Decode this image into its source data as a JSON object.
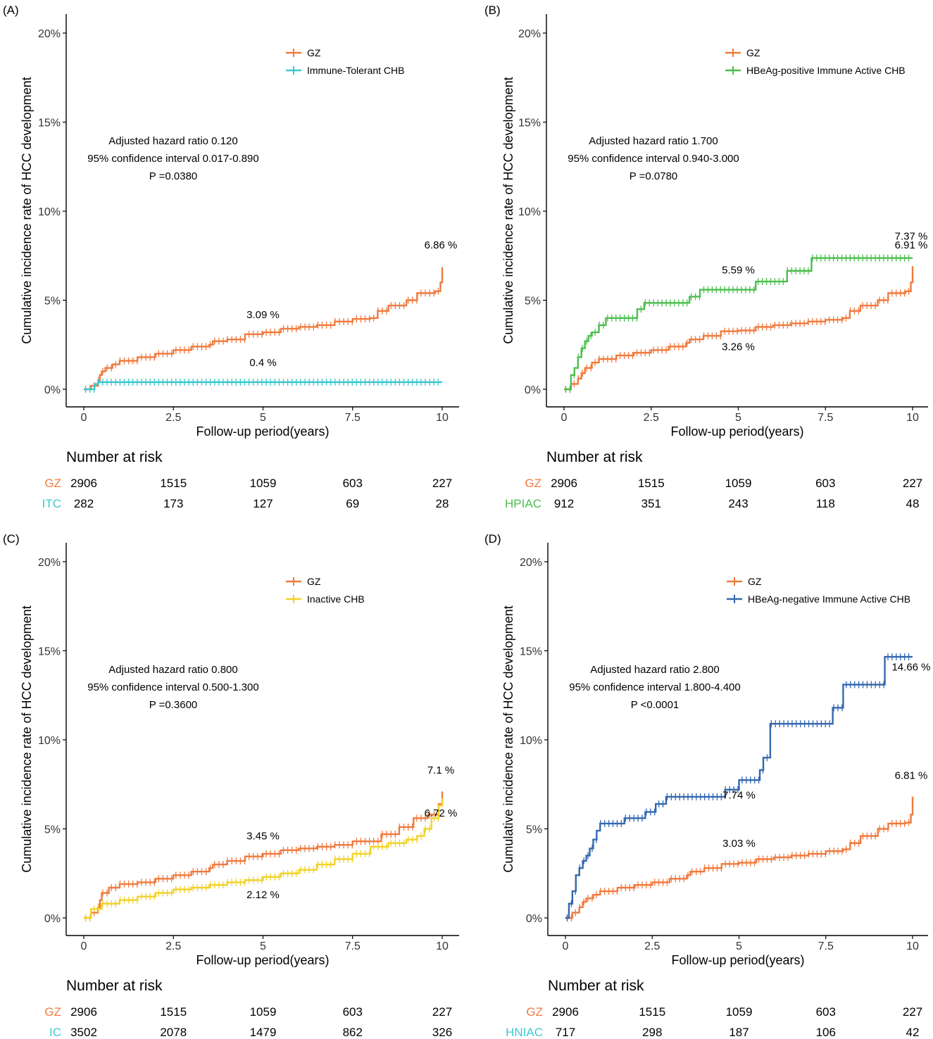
{
  "colors": {
    "GZ": "#f07a3f",
    "ITC": "#3ec8cf",
    "HPIAC": "#4cbf4f",
    "IC": "#f2d22a",
    "HNIAC": "#3468b0"
  },
  "common": {
    "xlabel": "Follow-up period(years)",
    "ylabel": "Cumulative incidence rate of HCC development",
    "xticks": [
      "0",
      "2.5",
      "5",
      "7.5",
      "10"
    ],
    "yticks": [
      "0%",
      "5%",
      "10%",
      "15%",
      "20%"
    ],
    "risk_title": "Number at risk"
  },
  "chart_data": [
    {
      "type": "line",
      "panel": "(A)",
      "xlim": [
        0,
        10
      ],
      "ylim": [
        0,
        20
      ],
      "legend": [
        "GZ",
        "Immune-Tolerant CHB"
      ],
      "stats": [
        "Adjusted hazard ratio 0.120",
        "95% confidence interval 0.017-0.890",
        "P =0.0380"
      ],
      "series": [
        {
          "name": "GZ",
          "color_key": "GZ",
          "x": [
            0,
            0.2,
            0.4,
            0.45,
            0.5,
            0.6,
            0.8,
            1.0,
            1.5,
            2.0,
            2.5,
            3.0,
            3.5,
            3.6,
            4.0,
            4.5,
            5.0,
            5.5,
            6.0,
            6.5,
            7.0,
            7.5,
            8.0,
            8.2,
            8.5,
            9.0,
            9.3,
            9.8,
            9.95,
            10.0
          ],
          "y": [
            0,
            0.2,
            0.5,
            0.8,
            1.0,
            1.2,
            1.4,
            1.6,
            1.8,
            2.0,
            2.2,
            2.4,
            2.5,
            2.7,
            2.8,
            3.09,
            3.2,
            3.4,
            3.5,
            3.6,
            3.8,
            3.95,
            4.0,
            4.4,
            4.7,
            5.0,
            5.4,
            5.5,
            6.0,
            6.86
          ]
        },
        {
          "name": "Immune-Tolerant CHB",
          "color_key": "ITC",
          "x": [
            0,
            0.3,
            0.4,
            2.5,
            5.0,
            7.5,
            10.0
          ],
          "y": [
            0,
            0.3,
            0.4,
            0.4,
            0.4,
            0.4,
            0.4
          ]
        }
      ],
      "annotations": [
        {
          "text": "6.86 %",
          "x": 10.0,
          "y": 7.9
        },
        {
          "text": "3.09 %",
          "x": 5.0,
          "y": 4.0
        },
        {
          "text": "0.4 %",
          "x": 5.0,
          "y": 1.3
        }
      ],
      "risk_table": {
        "rows": [
          {
            "label": "GZ",
            "color_key": "GZ",
            "values": [
              "2906",
              "1515",
              "1059",
              "603",
              "227"
            ]
          },
          {
            "label": "ITC",
            "color_key": "ITC",
            "values": [
              "282",
              "173",
              "127",
              "69",
              "28"
            ]
          }
        ]
      }
    },
    {
      "type": "line",
      "panel": "(B)",
      "xlim": [
        0,
        10
      ],
      "ylim": [
        0,
        20
      ],
      "legend": [
        "GZ",
        "HBeAg-positive Immune Active CHB"
      ],
      "stats": [
        "Adjusted hazard ratio 1.700",
        "95% confidence interval 0.940-3.000",
        "P =0.0780"
      ],
      "series": [
        {
          "name": "GZ",
          "color_key": "GZ",
          "x": [
            0,
            0.2,
            0.4,
            0.5,
            0.6,
            0.8,
            1.0,
            1.5,
            2.0,
            2.5,
            3.0,
            3.5,
            3.6,
            4.0,
            4.5,
            5.0,
            5.5,
            6.0,
            6.5,
            7.0,
            7.5,
            8.0,
            8.2,
            8.5,
            9.0,
            9.3,
            9.8,
            9.95,
            10.0
          ],
          "y": [
            0,
            0.3,
            0.6,
            0.9,
            1.2,
            1.5,
            1.7,
            1.9,
            2.05,
            2.2,
            2.4,
            2.6,
            2.8,
            3.0,
            3.26,
            3.3,
            3.5,
            3.6,
            3.7,
            3.8,
            3.9,
            4.0,
            4.4,
            4.7,
            5.0,
            5.4,
            5.5,
            6.0,
            6.91
          ]
        },
        {
          "name": "HBeAg-positive Immune Active CHB",
          "color_key": "HPIAC",
          "x": [
            0,
            0.2,
            0.3,
            0.4,
            0.5,
            0.6,
            0.7,
            0.8,
            1.0,
            1.2,
            2.1,
            2.3,
            3.6,
            3.9,
            5.5,
            6.4,
            7.1,
            8.0,
            9.0,
            10.0
          ],
          "y": [
            0,
            0.8,
            1.2,
            1.8,
            2.3,
            2.7,
            3.0,
            3.2,
            3.6,
            4.0,
            4.5,
            4.85,
            5.2,
            5.59,
            6.05,
            6.65,
            7.37,
            7.37,
            7.37,
            7.37
          ]
        }
      ],
      "annotations": [
        {
          "text": "7.37 %",
          "x": 10.0,
          "y": 8.4
        },
        {
          "text": "6.91 %",
          "x": 10.0,
          "y": 7.9
        },
        {
          "text": "5.59 %",
          "x": 5.0,
          "y": 6.5
        },
        {
          "text": "3.26 %",
          "x": 5.0,
          "y": 2.2
        }
      ],
      "risk_table": {
        "rows": [
          {
            "label": "GZ",
            "color_key": "GZ",
            "values": [
              "2906",
              "1515",
              "1059",
              "603",
              "227"
            ]
          },
          {
            "label": "HPIAC",
            "color_key": "HPIAC",
            "values": [
              "912",
              "351",
              "243",
              "118",
              "48"
            ]
          }
        ]
      }
    },
    {
      "type": "line",
      "panel": "(C)",
      "xlim": [
        0,
        10
      ],
      "ylim": [
        0,
        20
      ],
      "legend": [
        "GZ",
        "Inactive CHB"
      ],
      "stats": [
        "Adjusted hazard ratio 0.800",
        "95% confidence interval 0.500-1.300",
        "P =0.3600"
      ],
      "series": [
        {
          "name": "GZ",
          "color_key": "GZ",
          "x": [
            0,
            0.2,
            0.4,
            0.45,
            0.5,
            0.7,
            1.0,
            1.5,
            2.0,
            2.5,
            3.0,
            3.5,
            3.6,
            4.0,
            4.5,
            5.0,
            5.5,
            6.0,
            6.5,
            7.0,
            7.5,
            8.0,
            8.3,
            8.8,
            9.2,
            9.6,
            9.9,
            10.0
          ],
          "y": [
            0,
            0.3,
            0.6,
            1.0,
            1.4,
            1.7,
            1.9,
            2.0,
            2.2,
            2.4,
            2.6,
            2.8,
            3.0,
            3.2,
            3.45,
            3.6,
            3.8,
            3.9,
            4.0,
            4.1,
            4.3,
            4.3,
            4.7,
            5.1,
            5.6,
            5.8,
            6.4,
            7.1
          ]
        },
        {
          "name": "Inactive CHB",
          "color_key": "IC",
          "x": [
            0,
            0.2,
            0.5,
            1.0,
            1.5,
            2.0,
            2.5,
            3.0,
            3.5,
            4.0,
            4.5,
            5.0,
            5.5,
            6.0,
            6.5,
            7.0,
            7.5,
            8.0,
            8.5,
            9.0,
            9.3,
            9.5,
            9.7,
            9.9,
            10.0
          ],
          "y": [
            0,
            0.5,
            0.8,
            1.0,
            1.2,
            1.4,
            1.6,
            1.7,
            1.85,
            2.0,
            2.12,
            2.3,
            2.5,
            2.7,
            3.0,
            3.3,
            3.6,
            4.0,
            4.2,
            4.4,
            4.6,
            5.0,
            5.6,
            6.3,
            6.72
          ]
        }
      ],
      "annotations": [
        {
          "text": "7.1 %",
          "x": 10.0,
          "y": 8.1
        },
        {
          "text": "6.72 %",
          "x": 10.0,
          "y": 5.7
        },
        {
          "text": "3.45 %",
          "x": 5.0,
          "y": 4.4
        },
        {
          "text": "2.12 %",
          "x": 5.0,
          "y": 1.1
        }
      ],
      "risk_table": {
        "rows": [
          {
            "label": "GZ",
            "color_key": "GZ",
            "values": [
              "2906",
              "1515",
              "1059",
              "603",
              "227"
            ]
          },
          {
            "label": "IC",
            "color_key": "ITC",
            "values": [
              "3502",
              "2078",
              "1479",
              "862",
              "326"
            ]
          }
        ]
      }
    },
    {
      "type": "line",
      "panel": "(D)",
      "xlim": [
        0,
        10
      ],
      "ylim": [
        0,
        20
      ],
      "legend": [
        "GZ",
        "HBeAg-negative Immune Active CHB"
      ],
      "stats": [
        "Adjusted hazard ratio 2.800",
        "95% confidence interval 1.800-4.400",
        "P <0.0001"
      ],
      "series": [
        {
          "name": "GZ",
          "color_key": "GZ",
          "x": [
            0,
            0.2,
            0.4,
            0.5,
            0.6,
            0.8,
            1.0,
            1.5,
            2.0,
            2.5,
            3.0,
            3.5,
            3.6,
            4.0,
            4.5,
            5.0,
            5.5,
            6.0,
            6.5,
            7.0,
            7.5,
            8.0,
            8.2,
            8.5,
            9.0,
            9.3,
            9.8,
            9.95,
            10.0
          ],
          "y": [
            0,
            0.3,
            0.6,
            0.9,
            1.1,
            1.3,
            1.5,
            1.7,
            1.85,
            2.0,
            2.2,
            2.4,
            2.6,
            2.8,
            3.03,
            3.1,
            3.3,
            3.4,
            3.5,
            3.6,
            3.75,
            3.85,
            4.2,
            4.6,
            5.0,
            5.3,
            5.35,
            5.8,
            6.81
          ]
        },
        {
          "name": "HBeAg-negative Immune Active CHB",
          "color_key": "HNIAC",
          "x": [
            0,
            0.1,
            0.2,
            0.3,
            0.4,
            0.5,
            0.6,
            0.7,
            0.8,
            0.9,
            1.0,
            1.7,
            2.3,
            2.6,
            2.9,
            4.6,
            5.0,
            5.6,
            5.7,
            5.9,
            7.5,
            7.7,
            8.0,
            8.3,
            9.2,
            10.0
          ],
          "y": [
            0,
            0.8,
            1.5,
            2.4,
            2.8,
            3.2,
            3.5,
            3.9,
            4.4,
            4.9,
            5.3,
            5.6,
            5.95,
            6.4,
            6.8,
            7.2,
            7.74,
            8.3,
            9.0,
            10.9,
            10.9,
            11.8,
            13.1,
            13.1,
            14.66,
            14.66
          ]
        }
      ],
      "annotations": [
        {
          "text": "14.66 %",
          "x": 10.0,
          "y": 13.9
        },
        {
          "text": "6.81 %",
          "x": 10.0,
          "y": 7.8
        },
        {
          "text": "7.74 %",
          "x": 5.0,
          "y": 6.7
        },
        {
          "text": "3.03 %",
          "x": 5.0,
          "y": 4.0
        }
      ],
      "risk_table": {
        "rows": [
          {
            "label": "GZ",
            "color_key": "GZ",
            "values": [
              "2906",
              "1515",
              "1059",
              "603",
              "227"
            ]
          },
          {
            "label": "HNIAC",
            "color_key": "ITC",
            "values": [
              "717",
              "298",
              "187",
              "106",
              "42"
            ]
          }
        ]
      }
    }
  ]
}
